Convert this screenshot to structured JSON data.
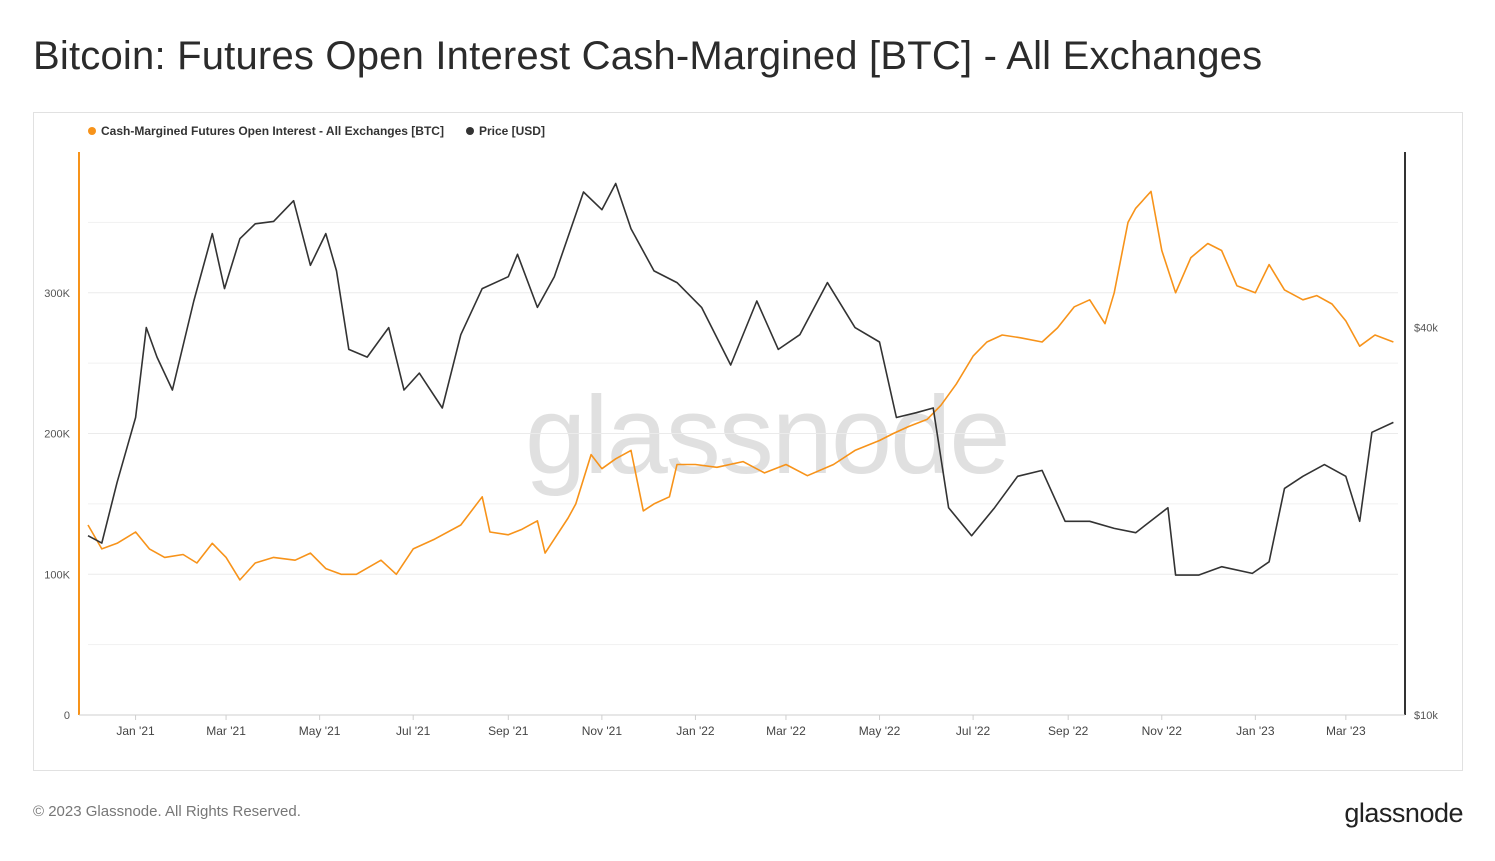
{
  "title": "Bitcoin: Futures Open Interest Cash-Margined [BTC] - All Exchanges",
  "footer": "© 2023 Glassnode. All Rights Reserved.",
  "brand": "glassnode",
  "watermark": "glassnode",
  "chart_data": {
    "type": "line",
    "grid": true,
    "legend_position": "top-left",
    "x_tick_labels": [
      "Jan '21",
      "Mar '21",
      "May '21",
      "Jul '21",
      "Sep '21",
      "Nov '21",
      "Jan '22",
      "Mar '22",
      "May '22",
      "Jul '22",
      "Sep '22",
      "Nov '22",
      "Jan '23",
      "Mar '23"
    ],
    "x_range": [
      "2020-12-01",
      "2023-04-04"
    ],
    "y_left": {
      "ticks": [
        0,
        100000,
        200000,
        300000
      ],
      "tick_labels": [
        "0",
        "100K",
        "200K",
        "300K"
      ],
      "range": [
        0,
        400000
      ]
    },
    "y_right": {
      "scale": "log",
      "ticks": [
        10000,
        40000
      ],
      "tick_labels": [
        "$10k",
        "$40k"
      ],
      "range": [
        10000,
        75000
      ]
    },
    "series": [
      {
        "name": "Cash-Margined Futures Open Interest - All Exchanges [BTC]",
        "axis": "left",
        "color": "#f7931a",
        "points": [
          [
            "2020-12-01",
            135000
          ],
          [
            "2020-12-10",
            118000
          ],
          [
            "2020-12-20",
            122000
          ],
          [
            "2021-01-01",
            130000
          ],
          [
            "2021-01-10",
            118000
          ],
          [
            "2021-01-20",
            112000
          ],
          [
            "2021-02-01",
            114000
          ],
          [
            "2021-02-10",
            108000
          ],
          [
            "2021-02-20",
            122000
          ],
          [
            "2021-03-01",
            112000
          ],
          [
            "2021-03-10",
            96000
          ],
          [
            "2021-03-20",
            108000
          ],
          [
            "2021-04-01",
            112000
          ],
          [
            "2021-04-15",
            110000
          ],
          [
            "2021-04-25",
            115000
          ],
          [
            "2021-05-05",
            104000
          ],
          [
            "2021-05-15",
            100000
          ],
          [
            "2021-05-25",
            100000
          ],
          [
            "2021-06-10",
            110000
          ],
          [
            "2021-06-20",
            100000
          ],
          [
            "2021-07-01",
            118000
          ],
          [
            "2021-07-15",
            125000
          ],
          [
            "2021-08-01",
            135000
          ],
          [
            "2021-08-15",
            155000
          ],
          [
            "2021-08-20",
            130000
          ],
          [
            "2021-09-01",
            128000
          ],
          [
            "2021-09-10",
            132000
          ],
          [
            "2021-09-20",
            138000
          ],
          [
            "2021-09-25",
            115000
          ],
          [
            "2021-10-01",
            125000
          ],
          [
            "2021-10-10",
            140000
          ],
          [
            "2021-10-15",
            150000
          ],
          [
            "2021-10-25",
            185000
          ],
          [
            "2021-11-01",
            175000
          ],
          [
            "2021-11-10",
            182000
          ],
          [
            "2021-11-20",
            188000
          ],
          [
            "2021-11-28",
            145000
          ],
          [
            "2021-12-05",
            150000
          ],
          [
            "2021-12-15",
            155000
          ],
          [
            "2021-12-20",
            178000
          ],
          [
            "2022-01-01",
            178000
          ],
          [
            "2022-01-15",
            176000
          ],
          [
            "2022-02-01",
            180000
          ],
          [
            "2022-02-15",
            172000
          ],
          [
            "2022-03-01",
            178000
          ],
          [
            "2022-03-15",
            170000
          ],
          [
            "2022-04-01",
            178000
          ],
          [
            "2022-04-15",
            188000
          ],
          [
            "2022-05-01",
            195000
          ],
          [
            "2022-05-10",
            200000
          ],
          [
            "2022-05-20",
            205000
          ],
          [
            "2022-06-01",
            210000
          ],
          [
            "2022-06-10",
            220000
          ],
          [
            "2022-06-20",
            235000
          ],
          [
            "2022-07-01",
            255000
          ],
          [
            "2022-07-10",
            265000
          ],
          [
            "2022-07-20",
            270000
          ],
          [
            "2022-08-01",
            268000
          ],
          [
            "2022-08-15",
            265000
          ],
          [
            "2022-08-25",
            275000
          ],
          [
            "2022-09-05",
            290000
          ],
          [
            "2022-09-15",
            295000
          ],
          [
            "2022-09-25",
            278000
          ],
          [
            "2022-10-01",
            300000
          ],
          [
            "2022-10-10",
            350000
          ],
          [
            "2022-10-15",
            360000
          ],
          [
            "2022-10-25",
            372000
          ],
          [
            "2022-11-01",
            330000
          ],
          [
            "2022-11-10",
            300000
          ],
          [
            "2022-11-20",
            325000
          ],
          [
            "2022-12-01",
            335000
          ],
          [
            "2022-12-10",
            330000
          ],
          [
            "2022-12-20",
            305000
          ],
          [
            "2023-01-01",
            300000
          ],
          [
            "2023-01-10",
            320000
          ],
          [
            "2023-01-20",
            302000
          ],
          [
            "2023-02-01",
            295000
          ],
          [
            "2023-02-10",
            298000
          ],
          [
            "2023-02-20",
            292000
          ],
          [
            "2023-03-01",
            280000
          ],
          [
            "2023-03-10",
            262000
          ],
          [
            "2023-03-20",
            270000
          ],
          [
            "2023-04-01",
            265000
          ]
        ]
      },
      {
        "name": "Price [USD]",
        "axis": "right",
        "color": "#333333",
        "points": [
          [
            "2020-12-01",
            19000
          ],
          [
            "2020-12-10",
            18500
          ],
          [
            "2020-12-20",
            23000
          ],
          [
            "2021-01-01",
            29000
          ],
          [
            "2021-01-08",
            40000
          ],
          [
            "2021-01-15",
            36000
          ],
          [
            "2021-01-25",
            32000
          ],
          [
            "2021-02-08",
            44000
          ],
          [
            "2021-02-20",
            56000
          ],
          [
            "2021-02-28",
            46000
          ],
          [
            "2021-03-10",
            55000
          ],
          [
            "2021-03-20",
            58000
          ],
          [
            "2021-04-01",
            58500
          ],
          [
            "2021-04-14",
            63000
          ],
          [
            "2021-04-25",
            50000
          ],
          [
            "2021-05-05",
            56000
          ],
          [
            "2021-05-12",
            49000
          ],
          [
            "2021-05-20",
            37000
          ],
          [
            "2021-06-01",
            36000
          ],
          [
            "2021-06-15",
            40000
          ],
          [
            "2021-06-25",
            32000
          ],
          [
            "2021-07-05",
            34000
          ],
          [
            "2021-07-20",
            30000
          ],
          [
            "2021-08-01",
            39000
          ],
          [
            "2021-08-15",
            46000
          ],
          [
            "2021-09-01",
            48000
          ],
          [
            "2021-09-07",
            52000
          ],
          [
            "2021-09-20",
            43000
          ],
          [
            "2021-10-01",
            48000
          ],
          [
            "2021-10-15",
            60000
          ],
          [
            "2021-10-20",
            65000
          ],
          [
            "2021-11-01",
            61000
          ],
          [
            "2021-11-10",
            67000
          ],
          [
            "2021-11-20",
            57000
          ],
          [
            "2021-12-05",
            49000
          ],
          [
            "2021-12-20",
            47000
          ],
          [
            "2022-01-05",
            43000
          ],
          [
            "2022-01-24",
            35000
          ],
          [
            "2022-02-10",
            44000
          ],
          [
            "2022-02-24",
            37000
          ],
          [
            "2022-03-10",
            39000
          ],
          [
            "2022-03-28",
            47000
          ],
          [
            "2022-04-15",
            40000
          ],
          [
            "2022-05-01",
            38000
          ],
          [
            "2022-05-12",
            29000
          ],
          [
            "2022-05-25",
            29500
          ],
          [
            "2022-06-05",
            30000
          ],
          [
            "2022-06-15",
            21000
          ],
          [
            "2022-06-30",
            19000
          ],
          [
            "2022-07-15",
            21000
          ],
          [
            "2022-07-30",
            23500
          ],
          [
            "2022-08-15",
            24000
          ],
          [
            "2022-08-30",
            20000
          ],
          [
            "2022-09-15",
            20000
          ],
          [
            "2022-10-01",
            19500
          ],
          [
            "2022-10-15",
            19200
          ],
          [
            "2022-11-05",
            21000
          ],
          [
            "2022-11-10",
            16500
          ],
          [
            "2022-11-25",
            16500
          ],
          [
            "2022-12-10",
            17000
          ],
          [
            "2022-12-30",
            16600
          ],
          [
            "2023-01-10",
            17300
          ],
          [
            "2023-01-20",
            22500
          ],
          [
            "2023-02-01",
            23500
          ],
          [
            "2023-02-15",
            24500
          ],
          [
            "2023-03-01",
            23500
          ],
          [
            "2023-03-10",
            20000
          ],
          [
            "2023-03-18",
            27500
          ],
          [
            "2023-04-01",
            28500
          ]
        ]
      }
    ]
  }
}
